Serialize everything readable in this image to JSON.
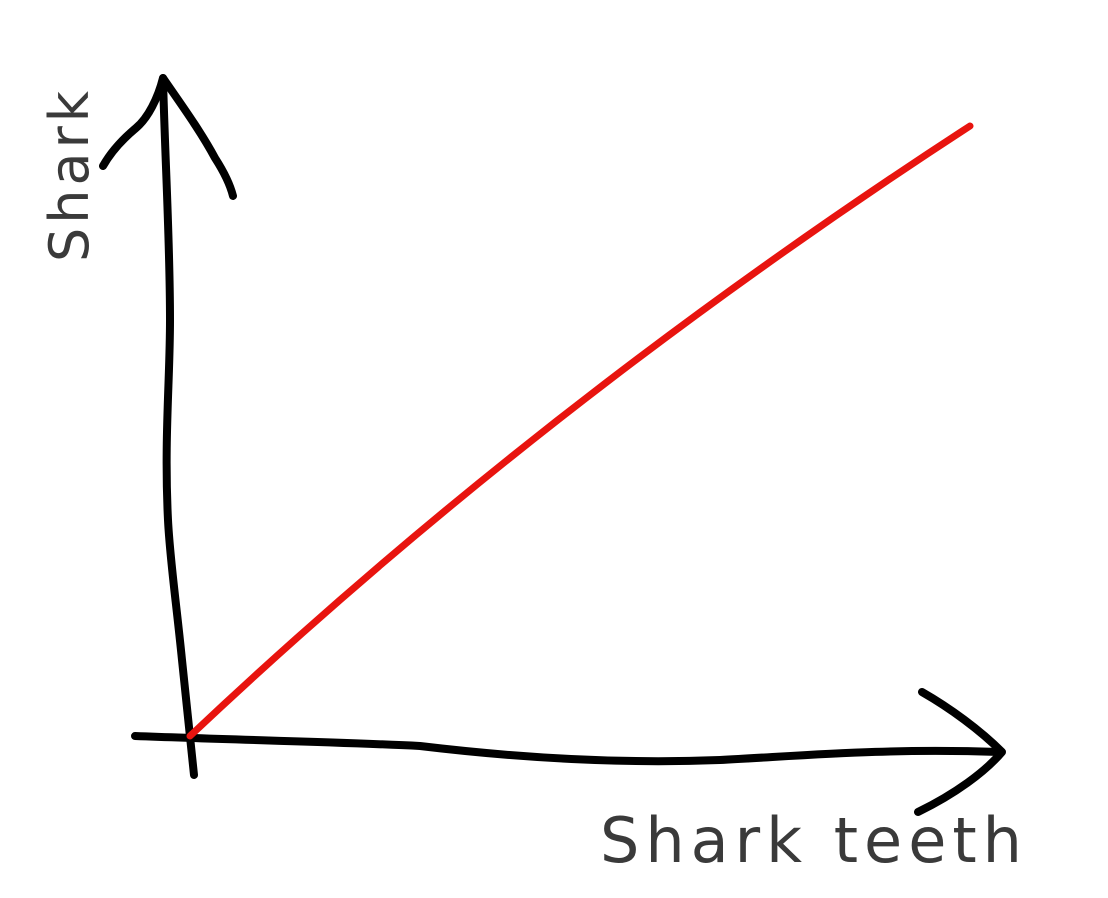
{
  "chart_data": {
    "type": "line",
    "title": "",
    "xlabel": "Shark teeth",
    "ylabel": "Shark",
    "xlim": [
      0,
      1
    ],
    "ylim": [
      0,
      1
    ],
    "grid": false,
    "legend": "none",
    "series": [
      {
        "color": "#e8140f",
        "x": [
          0,
          1
        ],
        "y": [
          0,
          1
        ]
      }
    ],
    "axis_color": "#000000",
    "label_color": "#3a3a3a"
  }
}
